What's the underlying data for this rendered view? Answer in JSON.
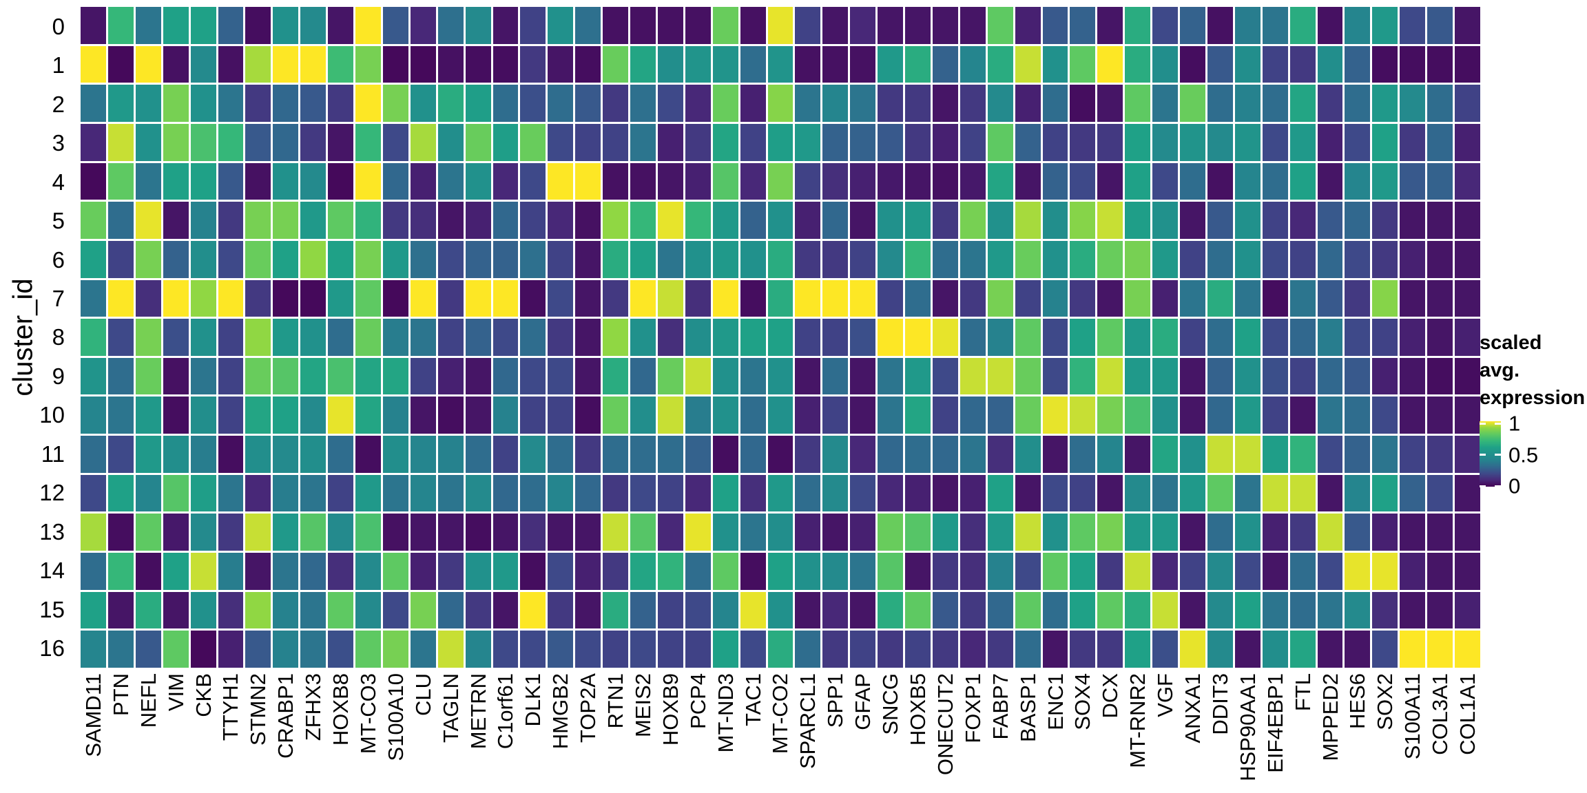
{
  "y_axis": {
    "title": "cluster_id",
    "labels": [
      "0",
      "1",
      "2",
      "3",
      "4",
      "5",
      "6",
      "7",
      "8",
      "9",
      "10",
      "11",
      "12",
      "13",
      "14",
      "15",
      "16"
    ]
  },
  "legend": {
    "title_line1": "scaled avg.",
    "title_line2": "expression",
    "ticks": [
      {
        "label": "1",
        "value": 1
      },
      {
        "label": "0.5",
        "value": 0.5
      },
      {
        "label": "0",
        "value": 0
      }
    ]
  },
  "chart_data": {
    "type": "heatmap",
    "xlabel": "",
    "ylabel": "cluster_id",
    "legend_title": "scaled avg. expression",
    "value_range": [
      0,
      1
    ],
    "grid": "off",
    "colormap": {
      "name": "viridis",
      "stops": [
        "#440154",
        "#482878",
        "#3e4989",
        "#31688e",
        "#26828e",
        "#21918c",
        "#1fa187",
        "#35b779",
        "#5ec962",
        "#90d743",
        "#fde725"
      ]
    },
    "x_categories": [
      "SAMD11",
      "PTN",
      "NEFL",
      "VIM",
      "CKB",
      "TTYH1",
      "STMN2",
      "CRABP1",
      "ZFHX3",
      "HOXB8",
      "MT-CO3",
      "S100A10",
      "CLU",
      "TAGLN",
      "METRN",
      "C1orf61",
      "DLK1",
      "HMGB2",
      "TOP2A",
      "RTN1",
      "MEIS2",
      "HOXB9",
      "PCP4",
      "MT-ND3",
      "TAC1",
      "MT-CO2",
      "SPARCL1",
      "SPP1",
      "GFAP",
      "SNCG",
      "HOXB5",
      "ONECUT2",
      "FOXP1",
      "FABP7",
      "BASP1",
      "ENC1",
      "SOX4",
      "DCX",
      "MT-RNR2",
      "VGF",
      "ANXA1",
      "DDIT3",
      "HSP90AA1",
      "EIF4EBP1",
      "FTL",
      "MPPED2",
      "HES6",
      "SOX2",
      "S100A11",
      "COL3A1",
      "COL1A1"
    ],
    "y_categories": [
      "0",
      "1",
      "2",
      "3",
      "4",
      "5",
      "6",
      "7",
      "8",
      "9",
      "10",
      "11",
      "12",
      "13",
      "14",
      "15",
      "16"
    ],
    "matrix": [
      [
        0.05,
        0.7,
        0.35,
        0.6,
        0.6,
        0.28,
        0.03,
        0.5,
        0.45,
        0.05,
        1.0,
        0.25,
        0.1,
        0.33,
        0.45,
        0.05,
        0.18,
        0.5,
        0.33,
        0.04,
        0.04,
        0.04,
        0.04,
        0.82,
        0.04,
        0.98,
        0.18,
        0.05,
        0.1,
        0.05,
        0.05,
        0.05,
        0.05,
        0.8,
        0.08,
        0.25,
        0.28,
        0.05,
        0.65,
        0.2,
        0.28,
        0.04,
        0.38,
        0.35,
        0.65,
        0.04,
        0.42,
        0.55,
        0.2,
        0.25,
        0.05
      ],
      [
        1.0,
        0.02,
        1.0,
        0.04,
        0.45,
        0.04,
        0.92,
        1.0,
        1.0,
        0.72,
        0.85,
        0.02,
        0.02,
        0.04,
        0.03,
        0.03,
        0.15,
        0.05,
        0.03,
        0.82,
        0.62,
        0.48,
        0.52,
        0.52,
        0.32,
        0.52,
        0.04,
        0.04,
        0.04,
        0.55,
        0.65,
        0.28,
        0.42,
        0.65,
        0.95,
        0.5,
        0.8,
        1.0,
        0.65,
        0.48,
        0.03,
        0.25,
        0.48,
        0.18,
        0.15,
        0.48,
        0.28,
        0.03,
        0.03,
        0.03,
        0.03
      ],
      [
        0.35,
        0.55,
        0.5,
        0.85,
        0.5,
        0.35,
        0.15,
        0.3,
        0.25,
        0.15,
        1.0,
        0.85,
        0.5,
        0.65,
        0.58,
        0.32,
        0.22,
        0.32,
        0.25,
        0.15,
        0.33,
        0.2,
        0.1,
        0.82,
        0.08,
        0.88,
        0.35,
        0.42,
        0.35,
        0.15,
        0.15,
        0.05,
        0.15,
        0.45,
        0.08,
        0.32,
        0.03,
        0.05,
        0.8,
        0.35,
        0.82,
        0.32,
        0.4,
        0.32,
        0.62,
        0.15,
        0.32,
        0.55,
        0.45,
        0.32,
        0.18
      ],
      [
        0.1,
        0.95,
        0.5,
        0.85,
        0.75,
        0.7,
        0.25,
        0.3,
        0.15,
        0.05,
        0.7,
        0.2,
        0.92,
        0.48,
        0.82,
        0.58,
        0.82,
        0.2,
        0.18,
        0.18,
        0.35,
        0.08,
        0.15,
        0.62,
        0.18,
        0.58,
        0.55,
        0.28,
        0.28,
        0.25,
        0.15,
        0.08,
        0.18,
        0.8,
        0.28,
        0.18,
        0.15,
        0.15,
        0.6,
        0.45,
        0.52,
        0.45,
        0.52,
        0.2,
        0.55,
        0.08,
        0.2,
        0.6,
        0.15,
        0.3,
        0.08
      ],
      [
        0.02,
        0.8,
        0.35,
        0.6,
        0.6,
        0.25,
        0.04,
        0.5,
        0.45,
        0.02,
        1.0,
        0.3,
        0.08,
        0.35,
        0.5,
        0.1,
        0.2,
        1.0,
        1.0,
        0.04,
        0.04,
        0.05,
        0.08,
        0.78,
        0.1,
        0.85,
        0.18,
        0.12,
        0.08,
        0.06,
        0.05,
        0.04,
        0.06,
        0.62,
        0.05,
        0.28,
        0.2,
        0.05,
        0.6,
        0.2,
        0.32,
        0.04,
        0.42,
        0.32,
        0.6,
        0.05,
        0.42,
        0.55,
        0.25,
        0.28,
        0.1
      ],
      [
        0.82,
        0.32,
        0.98,
        0.05,
        0.4,
        0.15,
        0.85,
        0.85,
        0.55,
        0.8,
        0.68,
        0.15,
        0.12,
        0.05,
        0.08,
        0.3,
        0.18,
        0.1,
        0.04,
        0.9,
        0.7,
        0.98,
        0.7,
        0.55,
        0.28,
        0.5,
        0.08,
        0.3,
        0.05,
        0.5,
        0.55,
        0.15,
        0.85,
        0.5,
        0.92,
        0.48,
        0.88,
        0.95,
        0.58,
        0.5,
        0.05,
        0.25,
        0.5,
        0.18,
        0.1,
        0.25,
        0.3,
        0.15,
        0.05,
        0.05,
        0.05
      ],
      [
        0.6,
        0.18,
        0.85,
        0.28,
        0.48,
        0.2,
        0.82,
        0.6,
        0.9,
        0.6,
        0.85,
        0.55,
        0.33,
        0.2,
        0.28,
        0.28,
        0.33,
        0.18,
        0.05,
        0.65,
        0.6,
        0.35,
        0.5,
        0.55,
        0.5,
        0.65,
        0.15,
        0.15,
        0.18,
        0.45,
        0.7,
        0.32,
        0.35,
        0.55,
        0.82,
        0.5,
        0.65,
        0.82,
        0.85,
        0.55,
        0.18,
        0.32,
        0.5,
        0.2,
        0.18,
        0.3,
        0.2,
        0.15,
        0.08,
        0.05,
        0.05
      ],
      [
        0.35,
        1.0,
        0.12,
        1.0,
        0.9,
        1.0,
        0.15,
        0.02,
        0.02,
        0.55,
        0.8,
        0.02,
        1.0,
        0.15,
        1.0,
        1.0,
        0.03,
        0.2,
        0.05,
        0.15,
        1.0,
        0.95,
        0.12,
        1.0,
        0.03,
        0.65,
        1.0,
        1.0,
        1.0,
        0.18,
        0.32,
        0.05,
        0.15,
        0.85,
        0.18,
        0.4,
        0.15,
        0.05,
        0.85,
        0.08,
        0.35,
        0.65,
        0.35,
        0.03,
        0.35,
        0.25,
        0.15,
        0.88,
        0.05,
        0.05,
        0.05
      ],
      [
        0.68,
        0.2,
        0.85,
        0.22,
        0.5,
        0.18,
        0.9,
        0.55,
        0.5,
        0.32,
        0.82,
        0.38,
        0.35,
        0.18,
        0.28,
        0.2,
        0.32,
        0.15,
        0.05,
        0.9,
        0.5,
        0.12,
        0.48,
        0.55,
        0.6,
        0.6,
        0.18,
        0.18,
        0.22,
        1.0,
        1.0,
        0.98,
        0.32,
        0.4,
        0.8,
        0.2,
        0.6,
        0.8,
        0.55,
        0.65,
        0.18,
        0.32,
        0.6,
        0.2,
        0.3,
        0.38,
        0.2,
        0.18,
        0.08,
        0.05,
        0.08
      ],
      [
        0.52,
        0.32,
        0.82,
        0.04,
        0.35,
        0.18,
        0.82,
        0.78,
        0.62,
        0.75,
        0.62,
        0.62,
        0.18,
        0.08,
        0.05,
        0.3,
        0.2,
        0.2,
        0.05,
        0.65,
        0.3,
        0.82,
        0.95,
        0.5,
        0.35,
        0.5,
        0.05,
        0.32,
        0.05,
        0.35,
        0.55,
        0.2,
        0.95,
        0.95,
        0.82,
        0.2,
        0.68,
        0.95,
        0.55,
        0.55,
        0.05,
        0.28,
        0.5,
        0.22,
        0.18,
        0.3,
        0.25,
        0.08,
        0.05,
        0.03,
        0.03
      ],
      [
        0.42,
        0.35,
        0.55,
        0.03,
        0.48,
        0.18,
        0.62,
        0.6,
        0.45,
        0.98,
        0.62,
        0.4,
        0.05,
        0.03,
        0.05,
        0.4,
        0.18,
        0.18,
        0.03,
        0.82,
        0.48,
        0.95,
        0.38,
        0.5,
        0.32,
        0.5,
        0.08,
        0.18,
        0.05,
        0.35,
        0.62,
        0.18,
        0.3,
        0.28,
        0.82,
        0.98,
        0.95,
        0.85,
        0.75,
        0.5,
        0.05,
        0.3,
        0.55,
        0.18,
        0.05,
        0.35,
        0.32,
        0.2,
        0.05,
        0.05,
        0.05
      ],
      [
        0.32,
        0.2,
        0.55,
        0.48,
        0.38,
        0.03,
        0.48,
        0.45,
        0.48,
        0.32,
        0.03,
        0.48,
        0.42,
        0.4,
        0.32,
        0.18,
        0.45,
        0.32,
        0.15,
        0.32,
        0.32,
        0.32,
        0.28,
        0.03,
        0.3,
        0.03,
        0.15,
        0.45,
        0.1,
        0.3,
        0.32,
        0.3,
        0.35,
        0.12,
        0.48,
        0.05,
        0.32,
        0.42,
        0.05,
        0.62,
        0.5,
        0.95,
        0.95,
        0.58,
        0.68,
        0.2,
        0.28,
        0.35,
        0.18,
        0.15,
        0.1
      ],
      [
        0.2,
        0.6,
        0.42,
        0.78,
        0.58,
        0.35,
        0.1,
        0.38,
        0.35,
        0.18,
        0.55,
        0.35,
        0.42,
        0.35,
        0.45,
        0.3,
        0.32,
        0.42,
        0.3,
        0.15,
        0.2,
        0.18,
        0.1,
        0.6,
        0.12,
        0.55,
        0.32,
        0.45,
        0.2,
        0.1,
        0.08,
        0.05,
        0.08,
        0.6,
        0.05,
        0.2,
        0.18,
        0.05,
        0.45,
        0.35,
        0.55,
        0.8,
        0.35,
        0.95,
        0.95,
        0.05,
        0.42,
        0.6,
        0.28,
        0.2,
        0.05
      ],
      [
        0.92,
        0.03,
        0.8,
        0.06,
        0.45,
        0.15,
        0.95,
        0.55,
        0.78,
        0.45,
        0.75,
        0.04,
        0.05,
        0.05,
        0.03,
        0.05,
        0.12,
        0.05,
        0.05,
        0.95,
        0.78,
        0.1,
        0.98,
        0.5,
        0.35,
        0.48,
        0.08,
        0.05,
        0.08,
        0.82,
        0.78,
        0.55,
        0.12,
        0.55,
        0.95,
        0.5,
        0.8,
        0.85,
        0.55,
        0.55,
        0.05,
        0.32,
        0.5,
        0.08,
        0.15,
        0.95,
        0.25,
        0.08,
        0.05,
        0.05,
        0.05
      ],
      [
        0.32,
        0.7,
        0.03,
        0.6,
        0.95,
        0.38,
        0.05,
        0.35,
        0.3,
        0.12,
        0.45,
        0.8,
        0.08,
        0.15,
        0.5,
        0.55,
        0.03,
        0.2,
        0.08,
        0.15,
        0.62,
        0.68,
        0.32,
        0.8,
        0.03,
        0.6,
        0.5,
        0.45,
        0.35,
        0.78,
        0.05,
        0.15,
        0.12,
        0.4,
        0.2,
        0.8,
        0.6,
        0.15,
        0.95,
        0.1,
        0.18,
        0.45,
        0.2,
        0.05,
        0.32,
        0.2,
        0.98,
        0.98,
        0.08,
        0.05,
        0.05
      ],
      [
        0.6,
        0.05,
        0.65,
        0.05,
        0.5,
        0.12,
        0.9,
        0.4,
        0.35,
        0.8,
        0.45,
        0.2,
        0.85,
        0.3,
        0.15,
        0.05,
        1.0,
        0.15,
        0.05,
        0.65,
        0.28,
        0.18,
        0.2,
        0.42,
        0.98,
        0.5,
        0.05,
        0.1,
        0.05,
        0.65,
        0.8,
        0.25,
        0.15,
        0.3,
        0.8,
        0.32,
        0.6,
        0.8,
        0.65,
        0.95,
        0.05,
        0.45,
        0.6,
        0.35,
        0.32,
        0.35,
        0.45,
        0.12,
        0.05,
        0.05,
        0.08
      ],
      [
        0.42,
        0.35,
        0.25,
        0.8,
        0.02,
        0.08,
        0.25,
        0.4,
        0.35,
        0.22,
        0.8,
        0.85,
        0.35,
        0.95,
        0.42,
        0.2,
        0.2,
        0.25,
        0.2,
        0.18,
        0.2,
        0.18,
        0.18,
        0.6,
        0.2,
        0.65,
        0.32,
        0.15,
        0.18,
        0.15,
        0.18,
        0.15,
        0.1,
        0.15,
        0.32,
        0.05,
        0.15,
        0.15,
        0.6,
        0.22,
        0.98,
        0.45,
        0.05,
        0.48,
        0.62,
        0.05,
        0.05,
        0.2,
        1.0,
        1.0,
        1.0
      ]
    ]
  }
}
